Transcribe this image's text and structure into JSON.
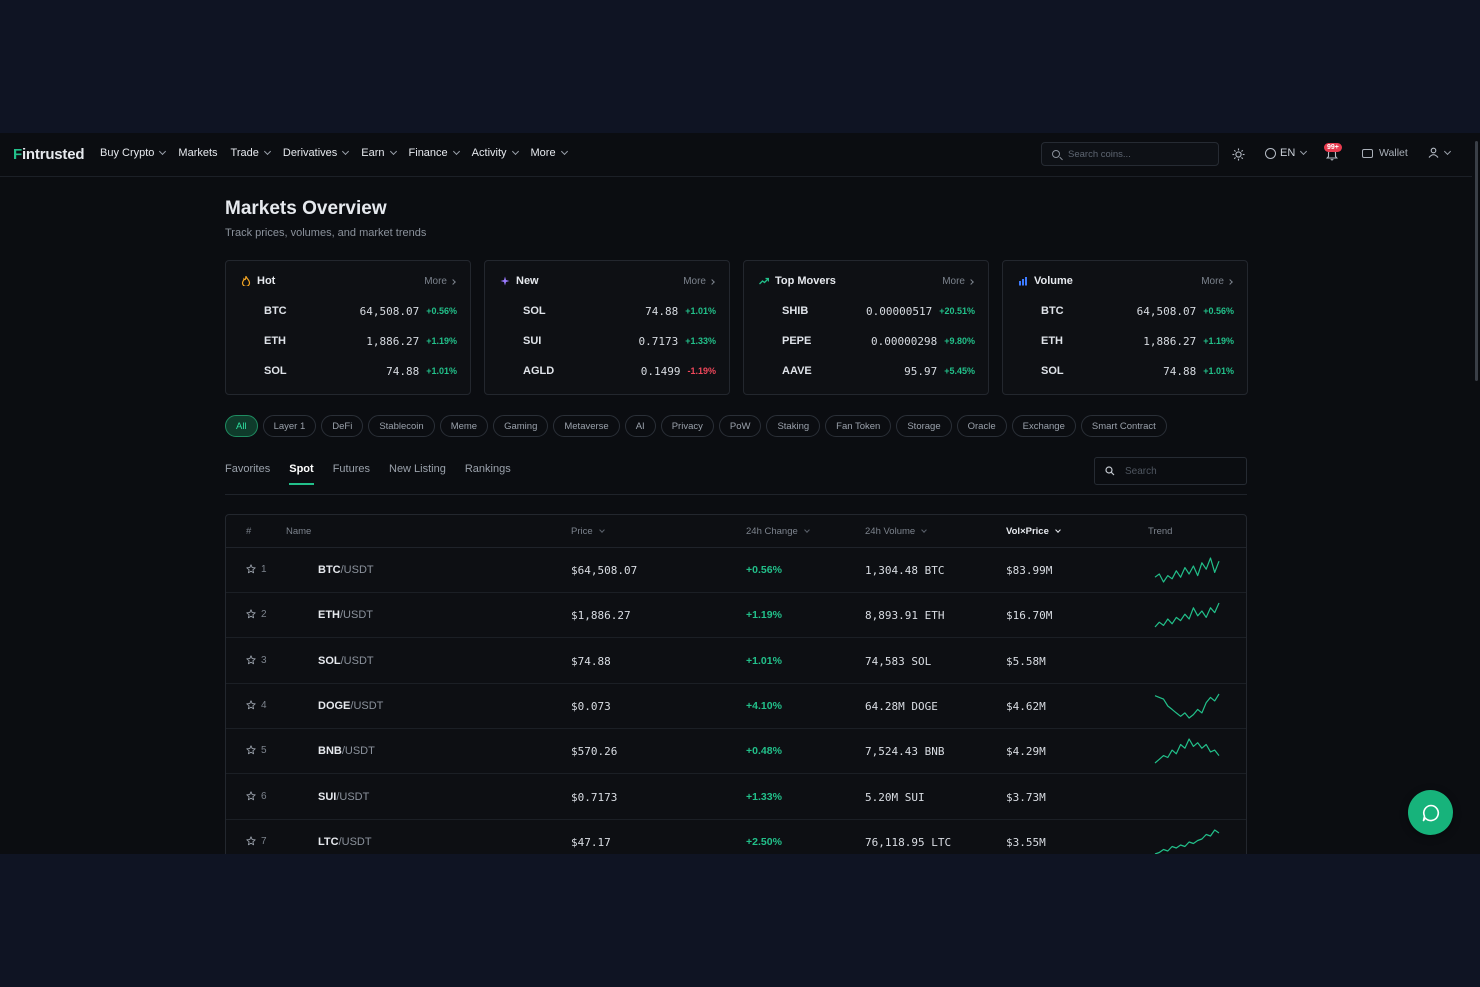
{
  "nav": {
    "logo_first": "F",
    "logo_rest": "intrusted",
    "menu": [
      {
        "label": "Buy Crypto",
        "dropdown": true
      },
      {
        "label": "Markets",
        "dropdown": false
      },
      {
        "label": "Trade",
        "dropdown": true
      },
      {
        "label": "Derivatives",
        "dropdown": true
      },
      {
        "label": "Earn",
        "dropdown": true
      },
      {
        "label": "Finance",
        "dropdown": true
      },
      {
        "label": "Activity",
        "dropdown": true
      },
      {
        "label": "More",
        "dropdown": true
      }
    ],
    "search_placeholder": "Search coins...",
    "language": "EN",
    "notification_count": "99+",
    "wallet_label": "Wallet"
  },
  "header": {
    "title": "Markets Overview",
    "subtitle": "Track prices, volumes, and market trends"
  },
  "cards": [
    {
      "title": "Hot",
      "icon": "flame-icon",
      "icon_color": "#f5a623",
      "more": "More",
      "rows": [
        {
          "symbol": "BTC",
          "price": "64,508.07",
          "change": "+0.56%",
          "dir": "up"
        },
        {
          "symbol": "ETH",
          "price": "1,886.27",
          "change": "+1.19%",
          "dir": "up"
        },
        {
          "symbol": "SOL",
          "price": "74.88",
          "change": "+1.01%",
          "dir": "up"
        }
      ]
    },
    {
      "title": "New",
      "icon": "sparkle-icon",
      "icon_color": "#9b7bff",
      "more": "More",
      "rows": [
        {
          "symbol": "SOL",
          "price": "74.88",
          "change": "+1.01%",
          "dir": "up"
        },
        {
          "symbol": "SUI",
          "price": "0.7173",
          "change": "+1.33%",
          "dir": "up"
        },
        {
          "symbol": "AGLD",
          "price": "0.1499",
          "change": "-1.19%",
          "dir": "down"
        }
      ]
    },
    {
      "title": "Top Movers",
      "icon": "trending-up-icon",
      "icon_color": "#22c08a",
      "more": "More",
      "rows": [
        {
          "symbol": "SHIB",
          "price": "0.00000517",
          "change": "+20.51%",
          "dir": "up"
        },
        {
          "symbol": "PEPE",
          "price": "0.00000298",
          "change": "+9.80%",
          "dir": "up"
        },
        {
          "symbol": "AAVE",
          "price": "95.97",
          "change": "+5.45%",
          "dir": "up"
        }
      ]
    },
    {
      "title": "Volume",
      "icon": "bar-chart-icon",
      "icon_color": "#3d7bff",
      "more": "More",
      "rows": [
        {
          "symbol": "BTC",
          "price": "64,508.07",
          "change": "+0.56%",
          "dir": "up"
        },
        {
          "symbol": "ETH",
          "price": "1,886.27",
          "change": "+1.19%",
          "dir": "up"
        },
        {
          "symbol": "SOL",
          "price": "74.88",
          "change": "+1.01%",
          "dir": "up"
        }
      ]
    }
  ],
  "chips": [
    "All",
    "Layer 1",
    "DeFi",
    "Stablecoin",
    "Meme",
    "Gaming",
    "Metaverse",
    "AI",
    "Privacy",
    "PoW",
    "Staking",
    "Fan Token",
    "Storage",
    "Oracle",
    "Exchange",
    "Smart Contract"
  ],
  "active_chip": "All",
  "tabs": [
    "Favorites",
    "Spot",
    "Futures",
    "New Listing",
    "Rankings"
  ],
  "active_tab": "Spot",
  "table_search_placeholder": "Search",
  "table": {
    "headers": {
      "rank": "#",
      "name": "Name",
      "price": "Price",
      "change": "24h Change",
      "volume": "24h Volume",
      "vol_price": "Vol×Price",
      "trend": "Trend"
    },
    "rows": [
      {
        "rank": "1",
        "base": "BTC",
        "quote": "/USDT",
        "price": "$64,508.07",
        "change": "+0.56%",
        "volume": "1,304.48 BTC",
        "vol_price": "$83.99M",
        "trend": [
          12,
          14,
          9,
          13,
          11,
          16,
          12,
          18,
          14,
          19,
          13,
          21,
          17,
          24,
          15,
          22
        ]
      },
      {
        "rank": "2",
        "base": "ETH",
        "quote": "/USDT",
        "price": "$1,886.27",
        "change": "+1.19%",
        "volume": "8,893.91 ETH",
        "vol_price": "$16.70M",
        "trend": [
          10,
          13,
          11,
          15,
          12,
          16,
          14,
          18,
          15,
          22,
          17,
          20,
          16,
          22,
          19,
          25
        ]
      },
      {
        "rank": "3",
        "base": "SOL",
        "quote": "/USDT",
        "price": "$74.88",
        "change": "+1.01%",
        "volume": "74,583 SOL",
        "vol_price": "$5.58M",
        "trend": []
      },
      {
        "rank": "4",
        "base": "DOGE",
        "quote": "/USDT",
        "price": "$0.073",
        "change": "+4.10%",
        "volume": "64.28M DOGE",
        "vol_price": "$4.62M",
        "trend": [
          22,
          21,
          20,
          16,
          14,
          12,
          10,
          12,
          9,
          11,
          14,
          12,
          18,
          21,
          19,
          23
        ]
      },
      {
        "rank": "5",
        "base": "BNB",
        "quote": "/USDT",
        "price": "$570.26",
        "change": "+0.48%",
        "volume": "7,524.43 BNB",
        "vol_price": "$4.29M",
        "trend": [
          8,
          10,
          12,
          11,
          15,
          13,
          18,
          16,
          21,
          17,
          19,
          16,
          18,
          14,
          15,
          12
        ]
      },
      {
        "rank": "6",
        "base": "SUI",
        "quote": "/USDT",
        "price": "$0.7173",
        "change": "+1.33%",
        "volume": "5.20M SUI",
        "vol_price": "$3.73M",
        "trend": []
      },
      {
        "rank": "7",
        "base": "LTC",
        "quote": "/USDT",
        "price": "$47.17",
        "change": "+2.50%",
        "volume": "76,118.95 LTC",
        "vol_price": "$3.55M",
        "trend": [
          6,
          7,
          9,
          8,
          11,
          10,
          12,
          11,
          14,
          13,
          15,
          16,
          19,
          18,
          22,
          20
        ]
      }
    ]
  },
  "colors": {
    "accent": "#22c08a",
    "down": "#f0475b",
    "background": "#0b0d11"
  }
}
